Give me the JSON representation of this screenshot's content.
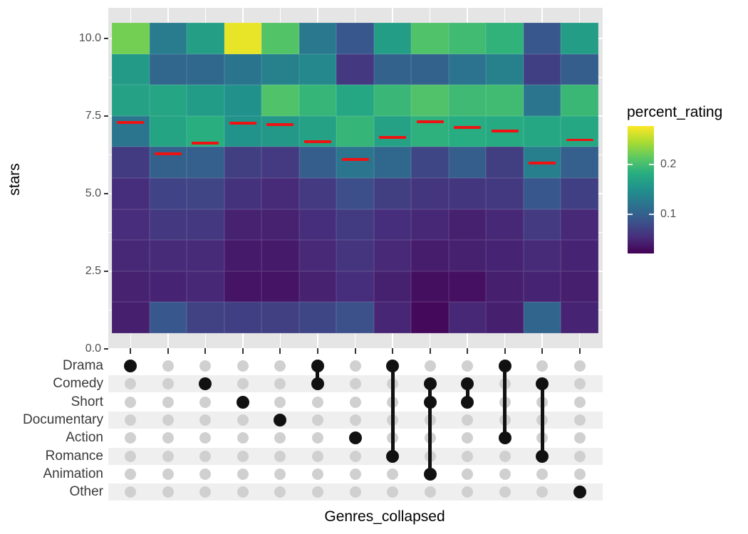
{
  "colors": {
    "panel_bg": "#e5e5e5",
    "grid_white": "#ffffff",
    "tick_text": "#4d4d4d",
    "axis_title_text": "#000000",
    "matrix_label_text": "#3a3a3a",
    "matrix_stripe": "#efefef",
    "dot_gray": "#d0d0d0",
    "dot_black": "#111111",
    "median_marker_red": "#ee1312"
  },
  "chart_data": {
    "type": "heatmap",
    "xlabel": "Genres_collapsed",
    "ylabel": "stars",
    "legend_title": "percent_rating",
    "grid": "ggplot-gray-panel-with-white-gridlines",
    "legend_position": "right",
    "y_categories_stars": [
      10,
      9,
      8,
      7,
      6,
      5,
      4,
      3,
      2,
      1
    ],
    "y_axis_ticks": [
      {
        "label": "10.0",
        "value": 10
      },
      {
        "label": "7.5",
        "value": 7.5
      },
      {
        "label": "5.0",
        "value": 5
      },
      {
        "label": "2.5",
        "value": 2.5
      },
      {
        "label": "0.0",
        "value": 0
      }
    ],
    "y_axis_range": [
      0,
      11
    ],
    "color_scale": {
      "palette": "viridis",
      "domain": [
        0.022,
        0.276
      ],
      "legend_ticks": [
        {
          "label": "0.2",
          "value": 0.2
        },
        {
          "label": "0.1",
          "value": 0.1
        }
      ]
    },
    "genre_matrix_rows": [
      "Drama",
      "Comedy",
      "Short",
      "Documentary",
      "Action",
      "Romance",
      "Animation",
      "Other"
    ],
    "columns": [
      {
        "genres": [
          "Drama"
        ],
        "median_stars": 7.29,
        "percent_rating_by_star": [
          0.222,
          0.16,
          0.168,
          0.121,
          0.066,
          0.055,
          0.054,
          0.05,
          0.046,
          0.044
        ]
      },
      {
        "genres": [],
        "median_stars": 6.28,
        "percent_rating_by_star": [
          0.129,
          0.106,
          0.172,
          0.171,
          0.101,
          0.073,
          0.063,
          0.052,
          0.047,
          0.091
        ]
      },
      {
        "genres": [
          "Comedy"
        ],
        "median_stars": 6.62,
        "percent_rating_by_star": [
          0.165,
          0.108,
          0.162,
          0.182,
          0.099,
          0.074,
          0.063,
          0.052,
          0.05,
          0.072
        ]
      },
      {
        "genres": [
          "Short"
        ],
        "median_stars": 7.27,
        "percent_rating_by_star": [
          0.268,
          0.12,
          0.15,
          0.152,
          0.068,
          0.058,
          0.046,
          0.04,
          0.036,
          0.069
        ]
      },
      {
        "genres": [
          "Documentary"
        ],
        "median_stars": 7.22,
        "percent_rating_by_star": [
          0.207,
          0.134,
          0.205,
          0.158,
          0.065,
          0.052,
          0.046,
          0.04,
          0.036,
          0.07
        ]
      },
      {
        "genres": [
          "Drama",
          "Comedy"
        ],
        "median_stars": 6.67,
        "percent_rating_by_star": [
          0.124,
          0.141,
          0.19,
          0.168,
          0.098,
          0.065,
          0.055,
          0.051,
          0.046,
          0.075
        ]
      },
      {
        "genres": [
          "Action"
        ],
        "median_stars": 6.1,
        "percent_rating_by_star": [
          0.091,
          0.063,
          0.174,
          0.19,
          0.121,
          0.083,
          0.066,
          0.06,
          0.055,
          0.084
        ]
      },
      {
        "genres": [
          "Drama",
          "Romance"
        ],
        "median_stars": 6.81,
        "percent_rating_by_star": [
          0.163,
          0.103,
          0.192,
          0.169,
          0.108,
          0.068,
          0.055,
          0.051,
          0.045,
          0.049
        ]
      },
      {
        "genres": [
          "Comedy",
          "Short",
          "Animation"
        ],
        "median_stars": 7.31,
        "percent_rating_by_star": [
          0.205,
          0.103,
          0.206,
          0.185,
          0.075,
          0.061,
          0.05,
          0.042,
          0.032,
          0.028
        ]
      },
      {
        "genres": [
          "Comedy",
          "Short"
        ],
        "median_stars": 7.13,
        "percent_rating_by_star": [
          0.197,
          0.119,
          0.195,
          0.181,
          0.098,
          0.061,
          0.045,
          0.045,
          0.033,
          0.05
        ]
      },
      {
        "genres": [
          "Drama",
          "Action"
        ],
        "median_stars": 7.01,
        "percent_rating_by_star": [
          0.187,
          0.134,
          0.197,
          0.177,
          0.068,
          0.064,
          0.05,
          0.047,
          0.044,
          0.044
        ]
      },
      {
        "genres": [
          "Comedy",
          "Romance"
        ],
        "median_stars": 5.98,
        "percent_rating_by_star": [
          0.091,
          0.069,
          0.121,
          0.174,
          0.131,
          0.091,
          0.065,
          0.052,
          0.047,
          0.105
        ]
      },
      {
        "genres": [
          "Other"
        ],
        "median_stars": 6.73,
        "percent_rating_by_star": [
          0.163,
          0.098,
          0.193,
          0.174,
          0.099,
          0.069,
          0.051,
          0.047,
          0.044,
          0.047
        ]
      }
    ]
  }
}
